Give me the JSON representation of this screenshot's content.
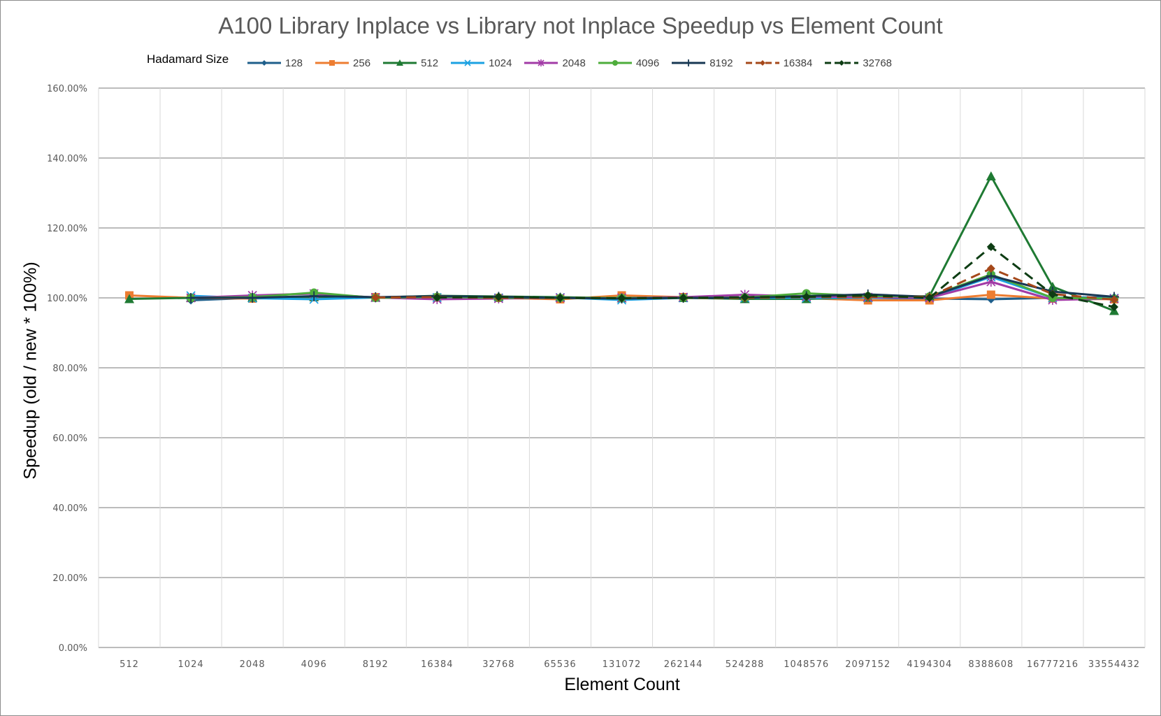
{
  "chart_data": {
    "type": "line",
    "title": "A100 Library Inplace vs Library not Inplace Speedup vs Element Count",
    "xlabel": "Element Count",
    "ylabel": "Speedup (old / new * 100%)",
    "legend_title": "Hadamard Size",
    "legend_position": "top",
    "ylim": [
      0,
      160
    ],
    "y_ticks": [
      "0.00%",
      "20.00%",
      "40.00%",
      "60.00%",
      "80.00%",
      "100.00%",
      "120.00%",
      "140.00%",
      "160.00%"
    ],
    "y_tick_values": [
      0,
      20,
      40,
      60,
      80,
      100,
      120,
      140,
      160
    ],
    "grid": true,
    "categories": [
      "512",
      "1024",
      "2048",
      "4096",
      "8192",
      "16384",
      "32768",
      "65536",
      "131072",
      "262144",
      "524288",
      "1048576",
      "2097152",
      "4194304",
      "8388608",
      "16777216",
      "33554432"
    ],
    "series": [
      {
        "name": "128",
        "color": "#1f5f8b",
        "marker": "diamond",
        "dash": false,
        "values": [
          null,
          99.3,
          100.0,
          100.4,
          100.2,
          100.1,
          100.0,
          100.1,
          99.8,
          100.0,
          99.9,
          100.1,
          100.0,
          99.8,
          99.6,
          100.0,
          100.2
        ]
      },
      {
        "name": "256",
        "color": "#ed7d31",
        "marker": "square",
        "dash": false,
        "values": [
          100.7,
          100.0,
          99.8,
          100.2,
          100.2,
          100.1,
          100.0,
          99.6,
          100.7,
          100.2,
          100.0,
          99.9,
          99.3,
          99.3,
          100.9,
          99.8,
          99.6
        ]
      },
      {
        "name": "512",
        "color": "#1f7a33",
        "marker": "triangle",
        "dash": false,
        "values": [
          99.7,
          100.0,
          100.1,
          100.3,
          100.1,
          100.6,
          100.4,
          100.2,
          99.9,
          100.0,
          99.7,
          99.7,
          100.1,
          100.5,
          134.8,
          103.2,
          96.3
        ]
      },
      {
        "name": "1024",
        "color": "#1ba1e2",
        "marker": "x",
        "dash": false,
        "values": [
          null,
          100.6,
          99.9,
          99.6,
          100.1,
          100.1,
          100.0,
          100.1,
          99.4,
          100.0,
          100.0,
          100.0,
          100.0,
          100.0,
          106.0,
          100.0,
          99.9
        ]
      },
      {
        "name": "2048",
        "color": "#a23ba6",
        "marker": "asterisk",
        "dash": false,
        "values": [
          null,
          100.0,
          100.7,
          101.2,
          100.1,
          99.6,
          99.8,
          100.0,
          100.0,
          100.2,
          100.9,
          100.4,
          100.2,
          100.0,
          104.6,
          99.4,
          99.8
        ]
      },
      {
        "name": "4096",
        "color": "#4ead3b",
        "marker": "circle",
        "dash": false,
        "values": [
          null,
          100.0,
          100.2,
          101.5,
          100.0,
          100.3,
          100.0,
          100.0,
          100.0,
          100.0,
          100.1,
          101.3,
          100.5,
          100.4,
          106.7,
          100.0,
          99.8
        ]
      },
      {
        "name": "8192",
        "color": "#173753",
        "marker": "plus",
        "dash": false,
        "values": [
          null,
          100.0,
          100.0,
          100.5,
          100.2,
          100.5,
          100.3,
          100.0,
          99.8,
          100.0,
          100.0,
          100.5,
          101.0,
          100.3,
          106.3,
          101.8,
          100.3
        ]
      },
      {
        "name": "16384",
        "color": "#a5481a",
        "marker": "diamond",
        "dash": true,
        "values": [
          null,
          null,
          null,
          null,
          100.1,
          100.2,
          100.0,
          100.0,
          99.9,
          100.0,
          100.0,
          100.2,
          100.2,
          100.3,
          108.4,
          101.1,
          99.5
        ]
      },
      {
        "name": "32768",
        "color": "#0e3d14",
        "marker": "diamond",
        "dash": true,
        "values": [
          null,
          null,
          null,
          null,
          null,
          100.1,
          100.3,
          100.0,
          99.9,
          100.0,
          100.2,
          100.3,
          100.7,
          100.0,
          114.6,
          101.0,
          97.4
        ]
      }
    ]
  }
}
